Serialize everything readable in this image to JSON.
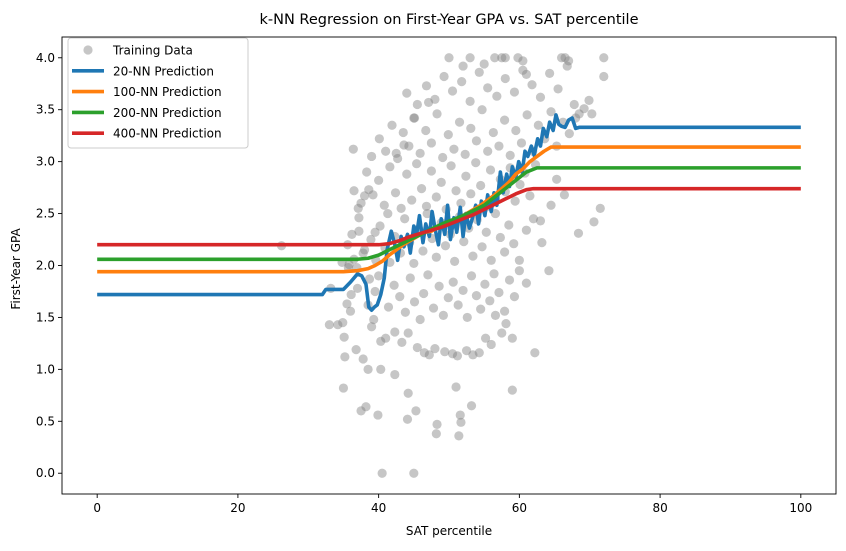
{
  "chart_data": {
    "type": "scatter",
    "title": "k-NN Regression on First-Year GPA vs. SAT percentile",
    "xlabel": "SAT percentile",
    "ylabel": "First-Year GPA",
    "xlim": [
      -5,
      105
    ],
    "ylim": [
      -0.2,
      4.2
    ],
    "x_ticks": [
      0,
      20,
      40,
      60,
      80,
      100
    ],
    "y_ticks": [
      0.0,
      0.5,
      1.0,
      1.5,
      2.0,
      2.5,
      3.0,
      3.5,
      4.0
    ],
    "y_tick_labels": [
      "0.0",
      "0.5",
      "1.0",
      "1.5",
      "2.0",
      "2.5",
      "3.0",
      "3.5",
      "4.0"
    ],
    "grid": false,
    "legend_position": "top-left",
    "colors": {
      "scatter": "#808080",
      "k20": "#1f77b4",
      "k100": "#ff7f0e",
      "k200": "#2ca02c",
      "k400": "#d62728"
    },
    "scatter": {
      "name": "Training Data",
      "points": [
        [
          40.5,
          0.0
        ],
        [
          45.0,
          0.0
        ],
        [
          45.3,
          0.6
        ],
        [
          44.1,
          0.52
        ],
        [
          48.3,
          0.47
        ],
        [
          48.2,
          0.38
        ],
        [
          51.4,
          0.36
        ],
        [
          51.7,
          0.49
        ],
        [
          53.2,
          0.65
        ],
        [
          51.6,
          0.56
        ],
        [
          51.0,
          0.83
        ],
        [
          59.0,
          0.8
        ],
        [
          35.0,
          0.82
        ],
        [
          37.5,
          0.6
        ],
        [
          39.9,
          0.56
        ],
        [
          38.2,
          0.64
        ],
        [
          44.2,
          0.77
        ],
        [
          42.3,
          0.95
        ],
        [
          38.5,
          1.0
        ],
        [
          40.3,
          1.0
        ],
        [
          34.2,
          1.43
        ],
        [
          33.0,
          1.43
        ],
        [
          35.1,
          1.31
        ],
        [
          35.2,
          1.12
        ],
        [
          36.8,
          1.19
        ],
        [
          37.8,
          1.1
        ],
        [
          39.0,
          1.41
        ],
        [
          39.3,
          1.48
        ],
        [
          40.3,
          1.27
        ],
        [
          41.0,
          1.3
        ],
        [
          42.3,
          1.36
        ],
        [
          43.3,
          1.26
        ],
        [
          44.2,
          1.35
        ],
        [
          45.5,
          1.21
        ],
        [
          46.5,
          1.16
        ],
        [
          47.2,
          1.14
        ],
        [
          48.0,
          1.2
        ],
        [
          49.4,
          1.17
        ],
        [
          50.5,
          1.15
        ],
        [
          51.2,
          1.13
        ],
        [
          52.5,
          1.18
        ],
        [
          53.4,
          1.14
        ],
        [
          54.3,
          1.16
        ],
        [
          55.2,
          1.3
        ],
        [
          56.0,
          1.24
        ],
        [
          57.5,
          1.35
        ],
        [
          59.0,
          1.3
        ],
        [
          62.2,
          1.16
        ],
        [
          36.0,
          1.56
        ],
        [
          37.0,
          1.78
        ],
        [
          38.5,
          1.62
        ],
        [
          39.5,
          1.75
        ],
        [
          40.0,
          1.9
        ],
        [
          41.4,
          1.6
        ],
        [
          42.2,
          1.81
        ],
        [
          43.0,
          1.7
        ],
        [
          43.8,
          1.55
        ],
        [
          44.5,
          1.88
        ],
        [
          45.1,
          1.65
        ],
        [
          45.9,
          1.48
        ],
        [
          46.4,
          1.73
        ],
        [
          47.0,
          1.91
        ],
        [
          47.8,
          1.59
        ],
        [
          48.6,
          1.8
        ],
        [
          49.2,
          1.52
        ],
        [
          49.9,
          1.69
        ],
        [
          50.6,
          1.84
        ],
        [
          51.3,
          1.62
        ],
        [
          52.0,
          1.76
        ],
        [
          52.6,
          1.5
        ],
        [
          53.2,
          1.9
        ],
        [
          53.9,
          1.71
        ],
        [
          54.5,
          1.58
        ],
        [
          55.1,
          1.82
        ],
        [
          55.8,
          1.66
        ],
        [
          56.4,
          1.92
        ],
        [
          57.1,
          1.74
        ],
        [
          57.9,
          1.56
        ],
        [
          58.6,
          1.86
        ],
        [
          59.3,
          1.7
        ],
        [
          60.0,
          1.95
        ],
        [
          61.0,
          1.83
        ],
        [
          58.1,
          1.44
        ],
        [
          56.6,
          1.52
        ],
        [
          35.6,
          2.2
        ],
        [
          36.5,
          2.06
        ],
        [
          37.2,
          2.33
        ],
        [
          38.0,
          2.15
        ],
        [
          38.9,
          2.25
        ],
        [
          39.6,
          2.05
        ],
        [
          40.2,
          2.38
        ],
        [
          40.9,
          2.17
        ],
        [
          41.6,
          2.03
        ],
        [
          42.3,
          2.28
        ],
        [
          43.1,
          2.12
        ],
        [
          43.7,
          2.45
        ],
        [
          44.4,
          2.22
        ],
        [
          45.0,
          2.02
        ],
        [
          45.7,
          2.35
        ],
        [
          46.3,
          2.14
        ],
        [
          46.9,
          2.5
        ],
        [
          47.6,
          2.26
        ],
        [
          48.2,
          2.08
        ],
        [
          48.9,
          2.41
        ],
        [
          49.5,
          2.19
        ],
        [
          50.2,
          2.3
        ],
        [
          50.8,
          2.04
        ],
        [
          51.5,
          2.47
        ],
        [
          52.1,
          2.23
        ],
        [
          52.8,
          2.36
        ],
        [
          53.4,
          2.09
        ],
        [
          54.0,
          2.44
        ],
        [
          54.7,
          2.18
        ],
        [
          55.3,
          2.32
        ],
        [
          56.0,
          2.05
        ],
        [
          56.6,
          2.5
        ],
        [
          57.3,
          2.27
        ],
        [
          57.9,
          2.13
        ],
        [
          58.5,
          2.39
        ],
        [
          59.2,
          2.21
        ],
        [
          60.0,
          2.05
        ],
        [
          61.0,
          2.34
        ],
        [
          62.0,
          2.45
        ],
        [
          63.2,
          2.22
        ],
        [
          64.2,
          1.95
        ],
        [
          37.2,
          2.46
        ],
        [
          41.3,
          2.5
        ],
        [
          26.2,
          2.19
        ],
        [
          34.8,
          2.03
        ],
        [
          35.7,
          1.98
        ],
        [
          36.5,
          2.72
        ],
        [
          37.5,
          2.6
        ],
        [
          38.3,
          2.9
        ],
        [
          39.2,
          2.68
        ],
        [
          40.0,
          2.82
        ],
        [
          40.8,
          2.58
        ],
        [
          41.6,
          2.95
        ],
        [
          42.4,
          2.7
        ],
        [
          43.2,
          2.55
        ],
        [
          44.0,
          2.88
        ],
        [
          44.7,
          2.63
        ],
        [
          45.4,
          2.98
        ],
        [
          46.1,
          2.74
        ],
        [
          46.8,
          2.57
        ],
        [
          47.5,
          2.91
        ],
        [
          48.2,
          2.66
        ],
        [
          48.9,
          2.8
        ],
        [
          49.6,
          2.54
        ],
        [
          50.3,
          2.96
        ],
        [
          51.0,
          2.72
        ],
        [
          51.7,
          2.6
        ],
        [
          52.4,
          2.86
        ],
        [
          53.1,
          2.69
        ],
        [
          53.8,
          2.99
        ],
        [
          54.5,
          2.77
        ],
        [
          55.2,
          2.56
        ],
        [
          55.9,
          2.92
        ],
        [
          56.6,
          2.64
        ],
        [
          57.3,
          2.83
        ],
        [
          58.0,
          2.71
        ],
        [
          58.7,
          2.94
        ],
        [
          59.4,
          2.62
        ],
        [
          60.1,
          2.78
        ],
        [
          60.8,
          2.89
        ],
        [
          61.5,
          2.67
        ],
        [
          62.3,
          2.97
        ],
        [
          63.0,
          2.43
        ],
        [
          64.5,
          2.58
        ],
        [
          65.3,
          2.83
        ],
        [
          66.4,
          2.68
        ],
        [
          70.6,
          2.42
        ],
        [
          71.5,
          2.55
        ],
        [
          68.4,
          2.31
        ],
        [
          36.4,
          3.12
        ],
        [
          39.0,
          3.05
        ],
        [
          40.1,
          3.22
        ],
        [
          41.0,
          3.1
        ],
        [
          41.9,
          3.35
        ],
        [
          42.7,
          3.03
        ],
        [
          43.5,
          3.28
        ],
        [
          44.3,
          3.15
        ],
        [
          45.1,
          3.42
        ],
        [
          45.9,
          3.08
        ],
        [
          46.7,
          3.3
        ],
        [
          47.5,
          3.18
        ],
        [
          48.3,
          3.46
        ],
        [
          49.1,
          3.04
        ],
        [
          49.9,
          3.26
        ],
        [
          50.7,
          3.12
        ],
        [
          51.5,
          3.38
        ],
        [
          52.3,
          3.07
        ],
        [
          53.1,
          3.32
        ],
        [
          53.9,
          3.2
        ],
        [
          54.7,
          3.5
        ],
        [
          55.5,
          3.1
        ],
        [
          56.3,
          3.28
        ],
        [
          57.1,
          3.15
        ],
        [
          57.9,
          3.4
        ],
        [
          58.7,
          3.06
        ],
        [
          59.5,
          3.3
        ],
        [
          60.3,
          3.18
        ],
        [
          61.1,
          3.45
        ],
        [
          61.9,
          3.1
        ],
        [
          62.7,
          3.35
        ],
        [
          63.6,
          3.22
        ],
        [
          64.5,
          3.48
        ],
        [
          65.3,
          3.15
        ],
        [
          66.2,
          3.38
        ],
        [
          67.1,
          3.27
        ],
        [
          68.0,
          3.42
        ],
        [
          44.0,
          3.66
        ],
        [
          45.5,
          3.55
        ],
        [
          46.8,
          3.73
        ],
        [
          48.0,
          3.6
        ],
        [
          49.3,
          3.82
        ],
        [
          50.5,
          3.68
        ],
        [
          51.8,
          3.77
        ],
        [
          53.0,
          3.58
        ],
        [
          54.3,
          3.86
        ],
        [
          55.5,
          3.71
        ],
        [
          56.8,
          3.63
        ],
        [
          58.0,
          3.8
        ],
        [
          59.3,
          3.67
        ],
        [
          60.5,
          3.88
        ],
        [
          61.8,
          3.74
        ],
        [
          63.0,
          3.62
        ],
        [
          64.3,
          3.85
        ],
        [
          65.5,
          3.7
        ],
        [
          66.8,
          3.92
        ],
        [
          67.8,
          3.55
        ],
        [
          69.2,
          3.51
        ],
        [
          69.9,
          3.59
        ],
        [
          68.5,
          3.46
        ],
        [
          70.3,
          3.46
        ],
        [
          50.0,
          4.0
        ],
        [
          53.0,
          4.0
        ],
        [
          56.5,
          4.0
        ],
        [
          57.5,
          4.0
        ],
        [
          58.0,
          4.0
        ],
        [
          59.8,
          4.0
        ],
        [
          66.0,
          4.0
        ],
        [
          66.5,
          4.0
        ],
        [
          67.0,
          3.97
        ],
        [
          72.0,
          4.0
        ],
        [
          72.0,
          3.82
        ],
        [
          60.5,
          3.97
        ],
        [
          61.0,
          3.84
        ],
        [
          52.0,
          3.92
        ],
        [
          55.0,
          3.94
        ],
        [
          47.1,
          3.57
        ],
        [
          45.0,
          3.42
        ],
        [
          43.6,
          3.16
        ],
        [
          42.5,
          3.08
        ],
        [
          38.0,
          2.67
        ],
        [
          38.6,
          2.73
        ],
        [
          37.1,
          2.55
        ],
        [
          36.2,
          2.3
        ],
        [
          35.8,
          2.01
        ],
        [
          36.9,
          1.98
        ],
        [
          37.8,
          2.12
        ],
        [
          38.7,
          1.87
        ],
        [
          39.5,
          2.32
        ],
        [
          36.1,
          1.72
        ],
        [
          35.5,
          1.63
        ],
        [
          33.2,
          1.78
        ],
        [
          34.9,
          1.45
        ]
      ]
    },
    "series": [
      {
        "name": "20-NN Prediction",
        "color_key": "k20",
        "x": [
          0,
          32,
          32.5,
          34,
          35,
          36,
          37,
          37.6,
          38.2,
          38.6,
          39,
          39.4,
          39.8,
          40.3,
          40.8,
          41.2,
          41.8,
          42.3,
          42.7,
          43.2,
          43.6,
          44.1,
          44.5,
          45.0,
          45.4,
          45.8,
          46.3,
          46.7,
          47.2,
          47.6,
          48.0,
          48.5,
          48.9,
          49.4,
          49.8,
          50.2,
          50.7,
          51.1,
          51.6,
          52.0,
          52.4,
          52.9,
          53.3,
          53.8,
          54.2,
          54.6,
          55.1,
          55.5,
          56.0,
          56.4,
          56.8,
          57.3,
          57.7,
          58.2,
          58.6,
          59.0,
          59.5,
          59.9,
          60.4,
          60.8,
          61.2,
          61.7,
          62.1,
          62.6,
          63.0,
          63.4,
          63.9,
          64.3,
          64.8,
          65.2,
          65.6,
          66.0,
          66.5,
          67.0,
          67.5,
          68.0,
          68.5,
          69.0,
          100
        ],
        "y": [
          1.72,
          1.72,
          1.77,
          1.77,
          1.77,
          1.84,
          1.92,
          1.9,
          1.82,
          1.6,
          1.57,
          1.6,
          1.62,
          1.72,
          1.88,
          2.15,
          2.33,
          2.2,
          2.05,
          2.28,
          2.18,
          2.3,
          2.12,
          2.38,
          2.3,
          2.48,
          2.22,
          2.4,
          2.28,
          2.52,
          2.36,
          2.2,
          2.45,
          2.3,
          2.58,
          2.25,
          2.46,
          2.32,
          2.56,
          2.28,
          2.5,
          2.36,
          2.45,
          2.58,
          2.4,
          2.62,
          2.48,
          2.68,
          2.52,
          2.7,
          2.58,
          2.9,
          2.7,
          2.88,
          2.76,
          2.95,
          2.85,
          3.0,
          2.9,
          3.1,
          3.05,
          3.15,
          3.06,
          3.22,
          3.15,
          3.32,
          3.24,
          3.38,
          3.3,
          3.45,
          3.36,
          3.34,
          3.33,
          3.4,
          3.42,
          3.32,
          3.33,
          3.33,
          3.33
        ]
      },
      {
        "name": "100-NN Prediction",
        "color_key": "k100",
        "x": [
          0,
          35,
          37,
          38.5,
          39.5,
          40.5,
          41.5,
          42.5,
          43.5,
          44.5,
          45.5,
          46.5,
          47.5,
          48.5,
          49.5,
          50.5,
          51.5,
          52.5,
          53.5,
          54.5,
          55.5,
          56.5,
          57.5,
          58.5,
          59.5,
          60.5,
          61.5,
          62.5,
          63.5,
          64.5,
          65.5,
          100
        ],
        "y": [
          1.94,
          1.94,
          1.95,
          1.97,
          2.0,
          2.04,
          2.1,
          2.15,
          2.2,
          2.24,
          2.28,
          2.32,
          2.33,
          2.37,
          2.4,
          2.42,
          2.46,
          2.5,
          2.54,
          2.58,
          2.63,
          2.68,
          2.74,
          2.8,
          2.88,
          2.93,
          3.0,
          3.05,
          3.1,
          3.14,
          3.14,
          3.14
        ]
      },
      {
        "name": "200-NN Prediction",
        "color_key": "k200",
        "x": [
          0,
          37,
          38.5,
          40,
          41.5,
          43,
          44.5,
          46,
          47.5,
          49,
          50.5,
          52,
          53.5,
          55,
          56.5,
          58,
          59.5,
          61,
          62.5,
          63.5,
          100
        ],
        "y": [
          2.06,
          2.06,
          2.07,
          2.1,
          2.15,
          2.2,
          2.25,
          2.3,
          2.35,
          2.4,
          2.44,
          2.48,
          2.53,
          2.58,
          2.66,
          2.74,
          2.82,
          2.9,
          2.94,
          2.94,
          2.94
        ]
      },
      {
        "name": "400-NN Prediction",
        "color_key": "k400",
        "x": [
          0,
          40,
          41.5,
          43,
          44.5,
          46,
          47.5,
          49,
          50.5,
          52,
          53.5,
          55,
          56.5,
          58,
          59.5,
          61,
          62,
          100
        ],
        "y": [
          2.2,
          2.2,
          2.21,
          2.24,
          2.28,
          2.31,
          2.34,
          2.37,
          2.41,
          2.45,
          2.49,
          2.54,
          2.59,
          2.64,
          2.69,
          2.73,
          2.74,
          2.74
        ]
      }
    ]
  }
}
